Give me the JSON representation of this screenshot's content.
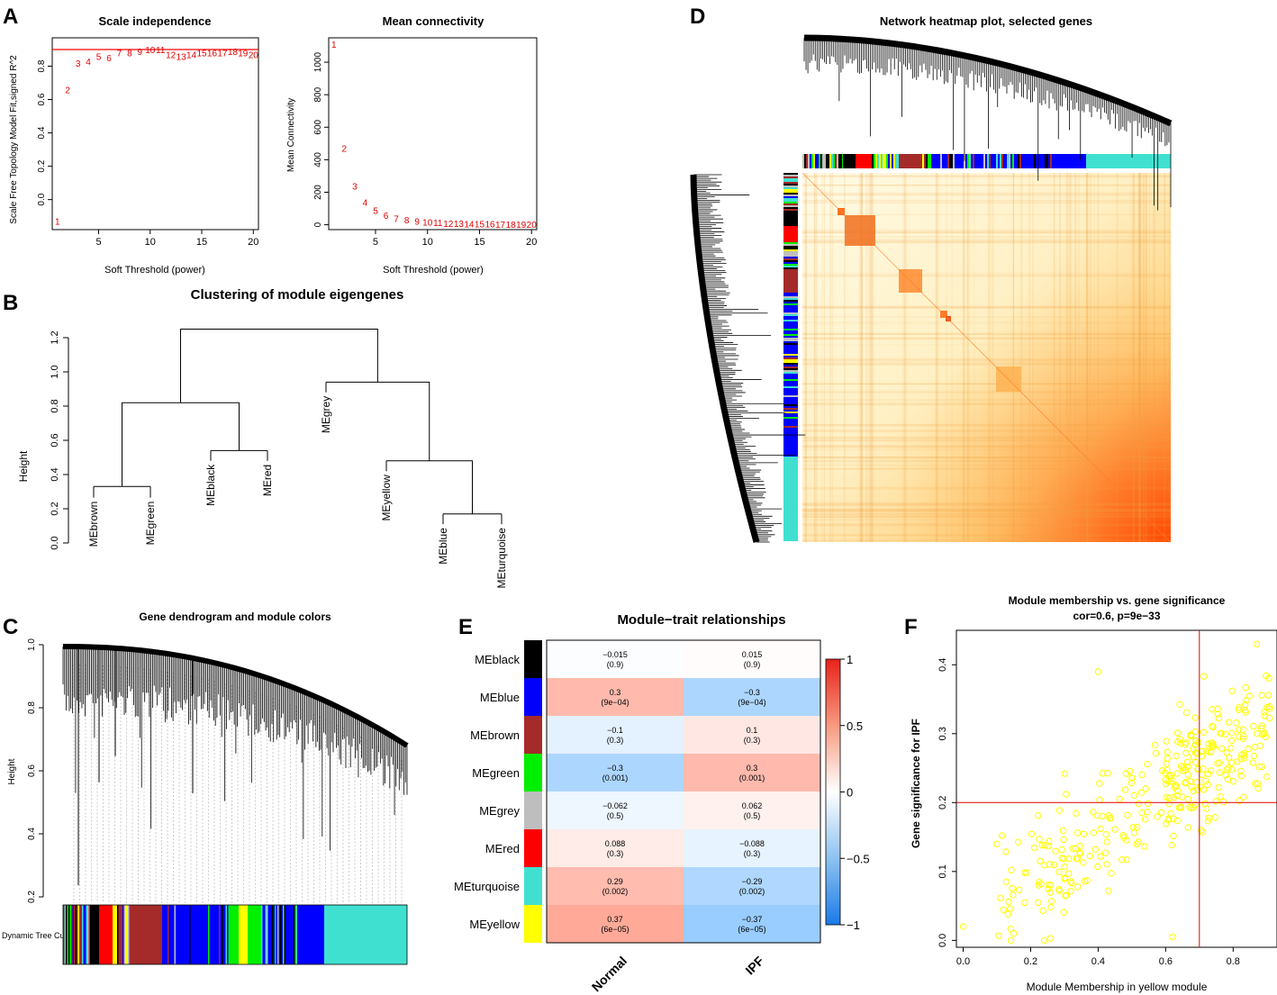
{
  "panels": {
    "A": {
      "label": "A",
      "left": {
        "title": "Scale independence",
        "xlabel": "Soft Threshold (power)",
        "ylabel": "Scale Free Topology Model Fit,signed R^2",
        "xticks": [
          5,
          10,
          15,
          20
        ],
        "yticks": [
          0.0,
          0.2,
          0.4,
          0.6,
          0.8
        ],
        "ytick_labels": [
          "0.0",
          "0.2",
          "0.4",
          "0.6",
          "0.8"
        ],
        "xlim": [
          0.5,
          20.5
        ],
        "ylim": [
          -0.18,
          0.97
        ],
        "threshold": 0.9,
        "points": [
          {
            "x": 1,
            "y": -0.13
          },
          {
            "x": 2,
            "y": 0.66
          },
          {
            "x": 3,
            "y": 0.82
          },
          {
            "x": 4,
            "y": 0.83
          },
          {
            "x": 5,
            "y": 0.86
          },
          {
            "x": 6,
            "y": 0.85
          },
          {
            "x": 7,
            "y": 0.88
          },
          {
            "x": 8,
            "y": 0.88
          },
          {
            "x": 9,
            "y": 0.89
          },
          {
            "x": 10,
            "y": 0.9
          },
          {
            "x": 11,
            "y": 0.9
          },
          {
            "x": 12,
            "y": 0.87
          },
          {
            "x": 13,
            "y": 0.86
          },
          {
            "x": 14,
            "y": 0.87
          },
          {
            "x": 15,
            "y": 0.88
          },
          {
            "x": 16,
            "y": 0.88
          },
          {
            "x": 17,
            "y": 0.88
          },
          {
            "x": 18,
            "y": 0.89
          },
          {
            "x": 19,
            "y": 0.88
          },
          {
            "x": 20,
            "y": 0.87
          }
        ]
      },
      "right": {
        "title": "Mean connectivity",
        "xlabel": "Soft Threshold (power)",
        "ylabel": "Mean Connectivity",
        "xticks": [
          5,
          10,
          15,
          20
        ],
        "yticks": [
          0,
          200,
          400,
          600,
          800,
          1000
        ],
        "ytick_labels": [
          "0",
          "200",
          "400",
          "600",
          "800",
          "1000"
        ],
        "xlim": [
          0.5,
          20.5
        ],
        "ylim": [
          -30,
          1150
        ],
        "points": [
          {
            "x": 1,
            "y": 1110
          },
          {
            "x": 2,
            "y": 470
          },
          {
            "x": 3,
            "y": 240
          },
          {
            "x": 4,
            "y": 140
          },
          {
            "x": 5,
            "y": 90
          },
          {
            "x": 6,
            "y": 60
          },
          {
            "x": 7,
            "y": 40
          },
          {
            "x": 8,
            "y": 30
          },
          {
            "x": 9,
            "y": 22
          },
          {
            "x": 10,
            "y": 16
          },
          {
            "x": 11,
            "y": 13
          },
          {
            "x": 12,
            "y": 10
          },
          {
            "x": 13,
            "y": 8
          },
          {
            "x": 14,
            "y": 7
          },
          {
            "x": 15,
            "y": 6
          },
          {
            "x": 16,
            "y": 5
          },
          {
            "x": 17,
            "y": 4
          },
          {
            "x": 18,
            "y": 4
          },
          {
            "x": 19,
            "y": 3
          },
          {
            "x": 20,
            "y": 3
          }
        ]
      }
    },
    "B": {
      "label": "B",
      "title": "Clustering of module eigengenes",
      "ylabel": "Height",
      "yticks": [
        0.0,
        0.2,
        0.4,
        0.6,
        0.8,
        1.0,
        1.2
      ],
      "ytick_labels": [
        "0.0",
        "0.2",
        "0.4",
        "0.6",
        "0.8",
        "1.0",
        "1.2"
      ],
      "leaves": [
        "MEbrown",
        "MEgreen",
        "MEblack",
        "MEred",
        "MEgrey",
        "MEyellow",
        "MEblue",
        "MEturquoise"
      ]
    },
    "C": {
      "label": "C",
      "title": "Gene dendrogram and module colors",
      "ylabel": "Height",
      "yticks": [
        0.2,
        0.4,
        0.6,
        0.8,
        1.0
      ],
      "ytick_labels": [
        "0.2",
        "0.4",
        "0.6",
        "0.8",
        "1.0"
      ],
      "colorbar_label": "Dynamic Tree Cut"
    },
    "D": {
      "label": "D",
      "title": "Network heatmap plot, selected genes"
    },
    "E": {
      "label": "E",
      "title": "Module−trait relationships",
      "rows": [
        "MEblack",
        "MEblue",
        "MEbrown",
        "MEgreen",
        "MEgrey",
        "MEred",
        "MEturquoise",
        "MEyellow"
      ],
      "row_colors": [
        "#000000",
        "#0000ff",
        "#a52a2a",
        "#00ee00",
        "#bebebe",
        "#ff0000",
        "#40e0d0",
        "#ffff00"
      ],
      "columns": [
        "Normal",
        "IPF"
      ],
      "correlations": [
        [
          -0.015,
          0.015
        ],
        [
          0.3,
          -0.3
        ],
        [
          -0.1,
          0.1
        ],
        [
          -0.3,
          0.3
        ],
        [
          -0.062,
          0.062
        ],
        [
          0.088,
          -0.088
        ],
        [
          0.29,
          -0.29
        ],
        [
          0.37,
          -0.37
        ]
      ],
      "cell_text": [
        [
          "−0.015",
          "0.015"
        ],
        [
          "0.3",
          "−0.3"
        ],
        [
          "−0.1",
          "0.1"
        ],
        [
          "−0.3",
          "0.3"
        ],
        [
          "−0.062",
          "0.062"
        ],
        [
          "0.088",
          "−0.088"
        ],
        [
          "0.29",
          "−0.29"
        ],
        [
          "0.37",
          "−0.37"
        ]
      ],
      "pvalues": [
        [
          "(0.9)",
          "(0.9)"
        ],
        [
          "(9e−04)",
          "(9e−04)"
        ],
        [
          "(0.3)",
          "(0.3)"
        ],
        [
          "(0.001)",
          "(0.001)"
        ],
        [
          "(0.5)",
          "(0.5)"
        ],
        [
          "(0.3)",
          "(0.3)"
        ],
        [
          "(0.002)",
          "(0.002)"
        ],
        [
          "(6e−05)",
          "(6e−05)"
        ]
      ],
      "legend_ticks": [
        1,
        0.5,
        0,
        -0.5,
        -1
      ],
      "legend_labels": [
        "1",
        "0.5",
        "0",
        "−0.5",
        "−1"
      ]
    },
    "F": {
      "label": "F",
      "title": "Module membership vs. gene significance",
      "subtitle": "cor=0.6, p=9e−33",
      "xlabel": "Module Membership in yellow module",
      "ylabel": "Gene significance for IPF",
      "xticks": [
        0.0,
        0.2,
        0.4,
        0.6,
        0.8
      ],
      "xtick_labels": [
        "0.0",
        "0.2",
        "0.4",
        "0.6",
        "0.8"
      ],
      "yticks": [
        0.0,
        0.1,
        0.2,
        0.3,
        0.4
      ],
      "ytick_labels": [
        "0.0",
        "0.1",
        "0.2",
        "0.3",
        "0.4"
      ],
      "xlim": [
        -0.02,
        0.93
      ],
      "ylim": [
        -0.01,
        0.45
      ],
      "vline": 0.7,
      "hline": 0.2,
      "point_color": "#ffff00"
    }
  },
  "chart_data": [
    {
      "type": "scatter",
      "title": "Scale independence",
      "xlabel": "Soft Threshold (power)",
      "ylabel": "Scale Free Topology Model Fit,signed R^2",
      "x": [
        1,
        2,
        3,
        4,
        5,
        6,
        7,
        8,
        9,
        10,
        11,
        12,
        13,
        14,
        15,
        16,
        17,
        18,
        19,
        20
      ],
      "y": [
        -0.13,
        0.66,
        0.82,
        0.83,
        0.86,
        0.85,
        0.88,
        0.88,
        0.89,
        0.9,
        0.9,
        0.87,
        0.86,
        0.87,
        0.88,
        0.88,
        0.88,
        0.89,
        0.88,
        0.87
      ],
      "hline": 0.9
    },
    {
      "type": "scatter",
      "title": "Mean connectivity",
      "xlabel": "Soft Threshold (power)",
      "ylabel": "Mean Connectivity",
      "x": [
        1,
        2,
        3,
        4,
        5,
        6,
        7,
        8,
        9,
        10,
        11,
        12,
        13,
        14,
        15,
        16,
        17,
        18,
        19,
        20
      ],
      "y": [
        1110,
        470,
        240,
        140,
        90,
        60,
        40,
        30,
        22,
        16,
        13,
        10,
        8,
        7,
        6,
        5,
        4,
        4,
        3,
        3
      ]
    },
    {
      "type": "dendrogram",
      "title": "Clustering of module eigengenes",
      "ylabel": "Height",
      "leaves": [
        "MEbrown",
        "MEgreen",
        "MEblack",
        "MEred",
        "MEgrey",
        "MEyellow",
        "MEblue",
        "MEturquoise"
      ],
      "merge_heights": [
        0.33,
        0.54,
        0.82,
        0.17,
        0.48,
        0.94,
        1.25
      ]
    },
    {
      "type": "heatmap",
      "title": "Module−trait relationships",
      "rows": [
        "MEblack",
        "MEblue",
        "MEbrown",
        "MEgreen",
        "MEgrey",
        "MEred",
        "MEturquoise",
        "MEyellow"
      ],
      "columns": [
        "Normal",
        "IPF"
      ],
      "values": [
        [
          -0.015,
          0.015
        ],
        [
          0.3,
          -0.3
        ],
        [
          -0.1,
          0.1
        ],
        [
          -0.3,
          0.3
        ],
        [
          -0.062,
          0.062
        ],
        [
          0.088,
          -0.088
        ],
        [
          0.29,
          -0.29
        ],
        [
          0.37,
          -0.37
        ]
      ],
      "pvalues": [
        "0.9",
        "9e-04",
        "0.3",
        "0.001",
        "0.5",
        "0.3",
        "0.002",
        "6e-05"
      ]
    },
    {
      "type": "scatter",
      "title": "Module membership vs. gene significance",
      "subtitle": "cor=0.6, p=9e−33",
      "xlabel": "Module Membership in yellow module",
      "ylabel": "Gene significance for IPF",
      "xlim": [
        0,
        0.9
      ],
      "ylim": [
        0,
        0.43
      ],
      "vline": 0.7,
      "hline": 0.2
    }
  ]
}
